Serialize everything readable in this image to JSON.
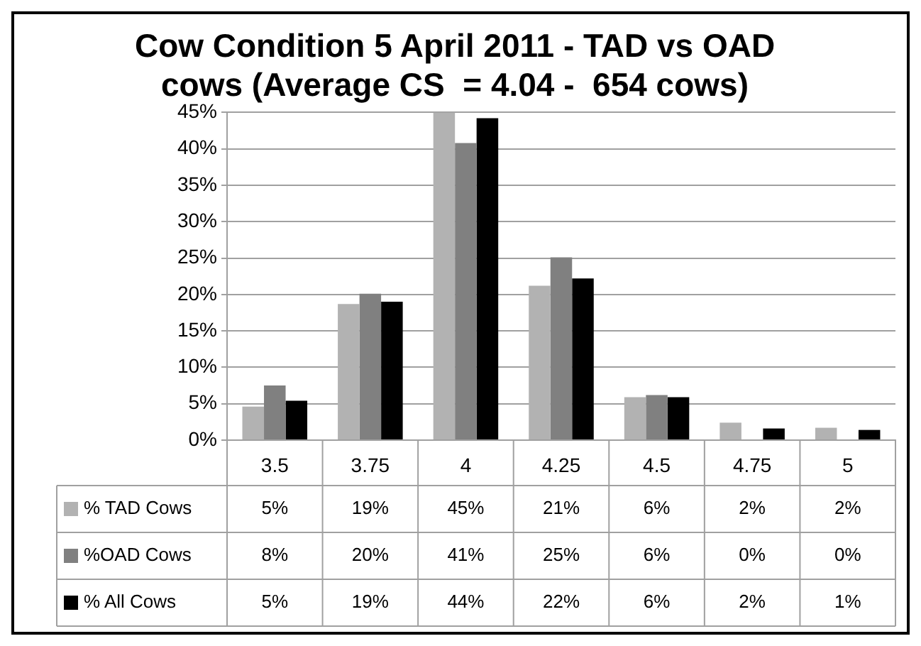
{
  "chart_data": {
    "type": "bar",
    "title": "Cow Condition 5 April 2011 - TAD vs OAD cows (Average CS  = 4.04 -  654 cows)",
    "categories": [
      "3.5",
      "3.75",
      "4",
      "4.25",
      "4.5",
      "4.75",
      "5"
    ],
    "series": [
      {
        "name": "% TAD Cows",
        "color": "#b2b2b2",
        "values": [
          4.6,
          18.7,
          45,
          21.2,
          5.9,
          2.4,
          1.7
        ],
        "value_labels": [
          "5%",
          "19%",
          "45%",
          "21%",
          "6%",
          "2%",
          "2%"
        ]
      },
      {
        "name": "%OAD Cows",
        "color": "#808080",
        "values": [
          7.5,
          20.1,
          40.8,
          25.1,
          6.2,
          0,
          0
        ],
        "value_labels": [
          "8%",
          "20%",
          "41%",
          "25%",
          "6%",
          "0%",
          "0%"
        ]
      },
      {
        "name": "% All Cows",
        "color": "#000000",
        "values": [
          5.4,
          19.0,
          44.2,
          22.2,
          5.9,
          1.6,
          1.4
        ],
        "value_labels": [
          "5%",
          "19%",
          "44%",
          "22%",
          "6%",
          "2%",
          "1%"
        ]
      }
    ],
    "ylim": [
      0,
      45
    ],
    "yticks": [
      {
        "value": 0,
        "label": "0%"
      },
      {
        "value": 5,
        "label": "5%"
      },
      {
        "value": 10,
        "label": "10%"
      },
      {
        "value": 15,
        "label": "15%"
      },
      {
        "value": 20,
        "label": "20%"
      },
      {
        "value": 25,
        "label": "25%"
      },
      {
        "value": 30,
        "label": "30%"
      },
      {
        "value": 35,
        "label": "35%"
      },
      {
        "value": 40,
        "label": "40%"
      },
      {
        "value": 45,
        "label": "45%"
      }
    ],
    "grid": "y",
    "legend": "bottom"
  }
}
